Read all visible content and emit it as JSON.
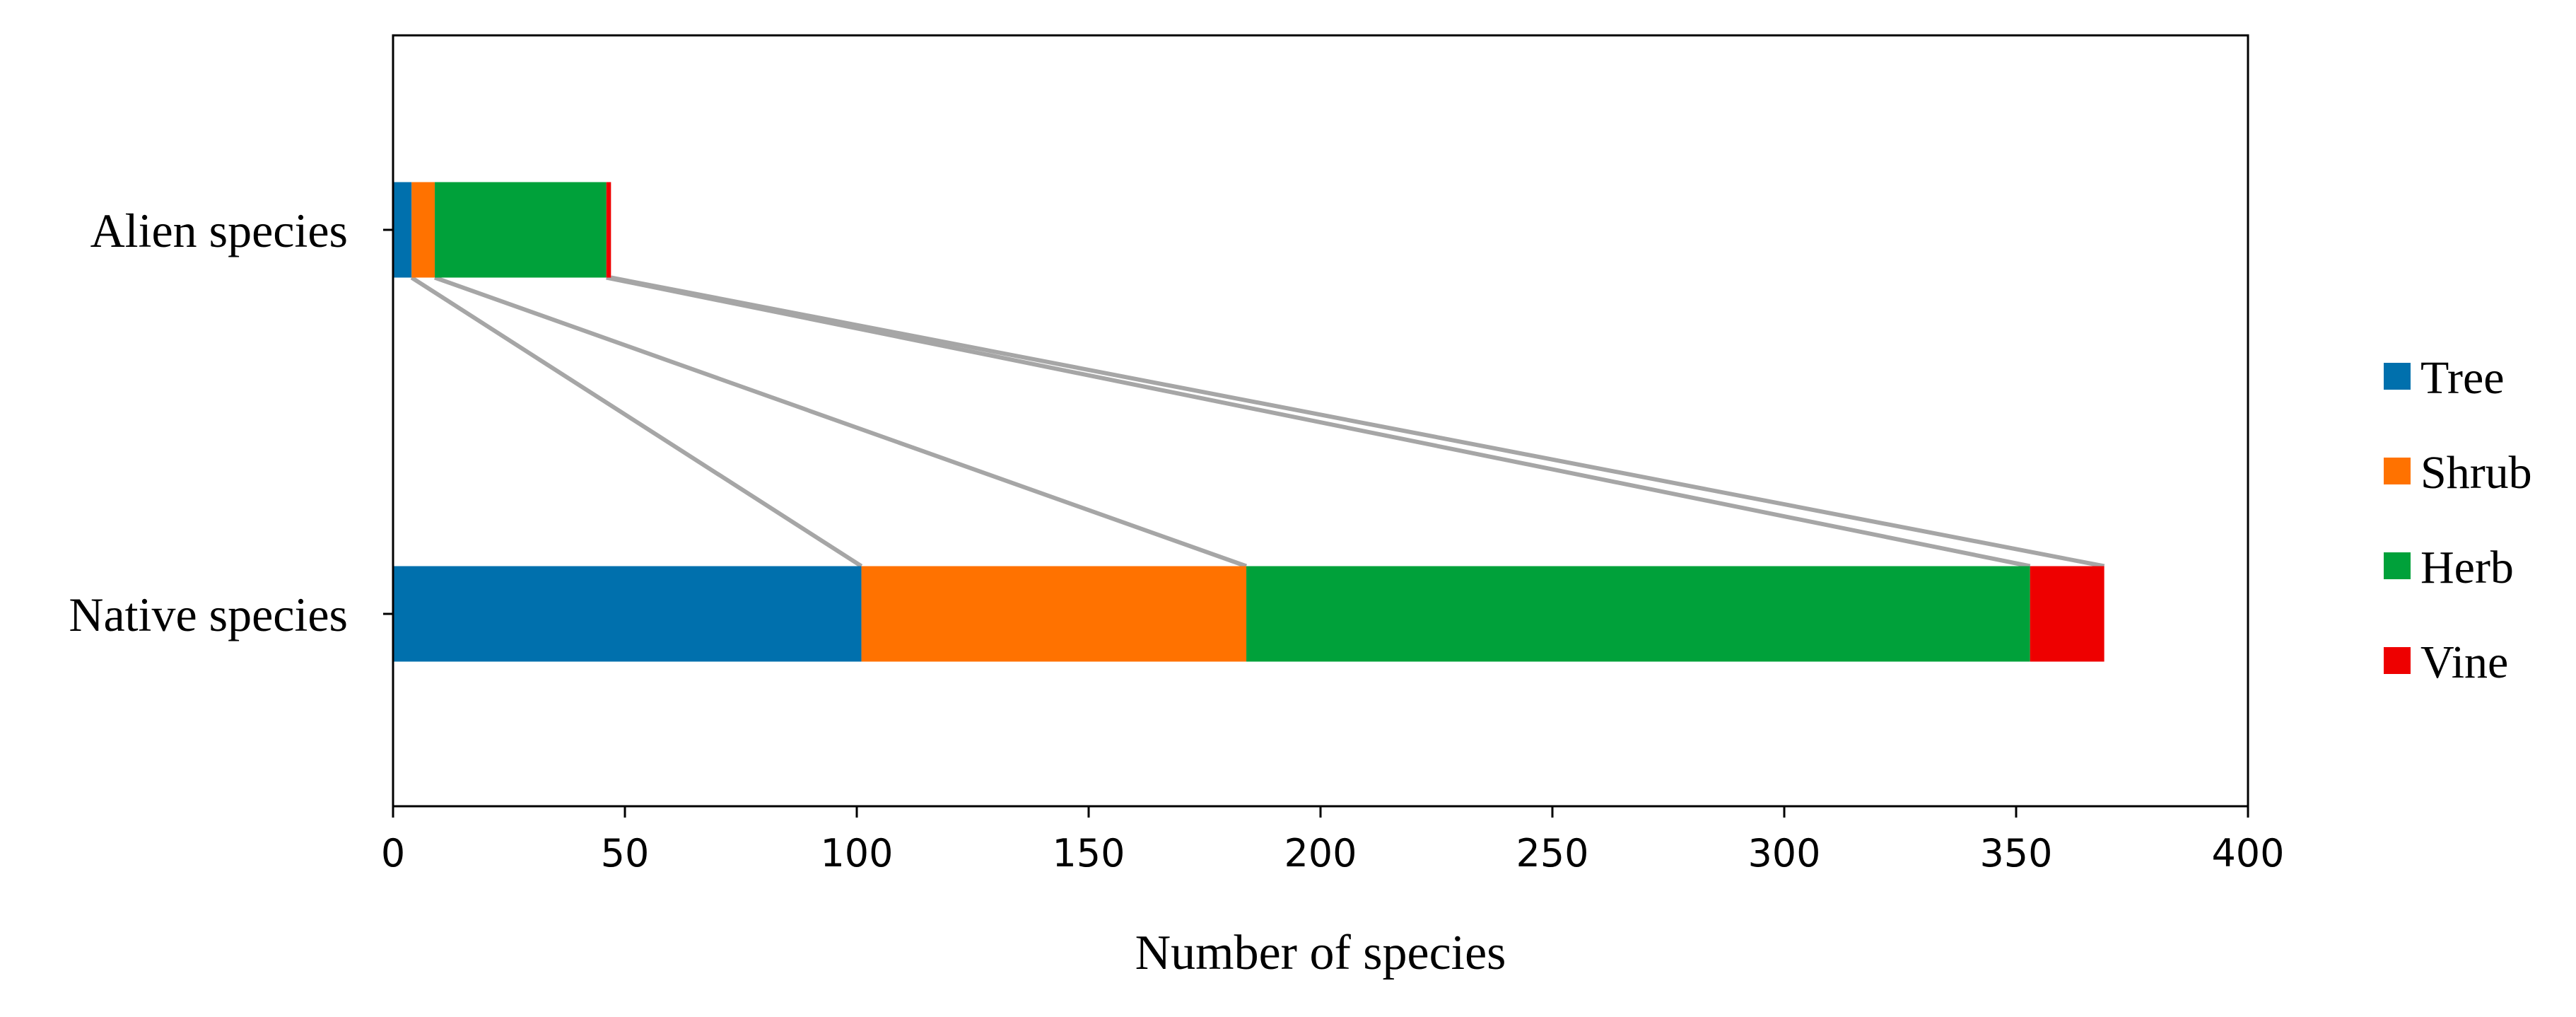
{
  "chart_data": {
    "type": "bar",
    "orientation": "horizontal",
    "stacked": true,
    "title": "",
    "xlabel": "Number of species",
    "ylabel": "",
    "xlim": [
      0,
      400
    ],
    "xticks": [
      0,
      50,
      100,
      150,
      200,
      250,
      300,
      350,
      400
    ],
    "categories": [
      "Alien species",
      "Native species"
    ],
    "series": [
      {
        "name": "Tree",
        "color": "#0070ad",
        "values": [
          4,
          101
        ]
      },
      {
        "name": "Shrub",
        "color": "#ff7200",
        "values": [
          5,
          83
        ]
      },
      {
        "name": "Herb",
        "color": "#00a13a",
        "values": [
          37,
          169
        ]
      },
      {
        "name": "Vine",
        "color": "#ee0000",
        "values": [
          1,
          16
        ]
      }
    ],
    "connector_color": "#a6a6a6",
    "grid": false,
    "legend_position": "right"
  }
}
